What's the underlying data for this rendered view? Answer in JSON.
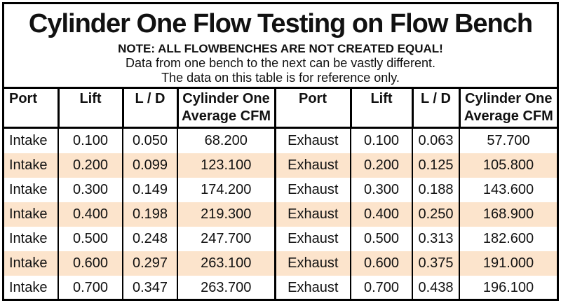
{
  "title": "Cylinder One Flow Testing on Flow Bench",
  "note": {
    "line1": "NOTE: ALL FLOWBENCHES ARE NOT CREATED EQUAL!",
    "line2": "Data from one bench to the next can be vastly different.",
    "line3": "The data on this table is for reference only."
  },
  "colors": {
    "band": "#fce4cc",
    "border": "#000000",
    "text": "#111111",
    "background": "#ffffff"
  },
  "table": {
    "headers": [
      "Port",
      "Lift",
      "L / D",
      "Cylinder One\nAverage CFM",
      "Port",
      "Lift",
      "L / D",
      "Cylinder One\nAverage CFM"
    ],
    "column_names": [
      "intake-port",
      "intake-lift",
      "intake-l-d",
      "intake-avg-cfm",
      "exhaust-port",
      "exhaust-lift",
      "exhaust-l-d",
      "exhaust-avg-cfm"
    ],
    "rows": [
      [
        "Intake",
        "0.100",
        "0.050",
        "68.200",
        "Exhaust",
        "0.100",
        "0.063",
        "57.700"
      ],
      [
        "Intake",
        "0.200",
        "0.099",
        "123.100",
        "Exhaust",
        "0.200",
        "0.125",
        "105.800"
      ],
      [
        "Intake",
        "0.300",
        "0.149",
        "174.200",
        "Exhaust",
        "0.300",
        "0.188",
        "143.600"
      ],
      [
        "Intake",
        "0.400",
        "0.198",
        "219.300",
        "Exhaust",
        "0.400",
        "0.250",
        "168.900"
      ],
      [
        "Intake",
        "0.500",
        "0.248",
        "247.700",
        "Exhaust",
        "0.500",
        "0.313",
        "182.600"
      ],
      [
        "Intake",
        "0.600",
        "0.297",
        "263.100",
        "Exhaust",
        "0.600",
        "0.375",
        "191.000"
      ],
      [
        "Intake",
        "0.700",
        "0.347",
        "263.700",
        "Exhaust",
        "0.700",
        "0.438",
        "196.100"
      ]
    ]
  },
  "chart_data": {
    "type": "table",
    "title": "Cylinder One Flow Testing on Flow Bench",
    "columns": [
      "Port",
      "Lift",
      "L / D",
      "Cylinder One Average CFM",
      "Port",
      "Lift",
      "L / D",
      "Cylinder One Average CFM"
    ],
    "series": [
      {
        "name": "Intake",
        "lift": [
          0.1,
          0.2,
          0.3,
          0.4,
          0.5,
          0.6,
          0.7
        ],
        "l_over_d": [
          0.05,
          0.099,
          0.149,
          0.198,
          0.248,
          0.297,
          0.347
        ],
        "average_cfm": [
          68.2,
          123.1,
          174.2,
          219.3,
          247.7,
          263.1,
          263.7
        ]
      },
      {
        "name": "Exhaust",
        "lift": [
          0.1,
          0.2,
          0.3,
          0.4,
          0.5,
          0.6,
          0.7
        ],
        "l_over_d": [
          0.063,
          0.125,
          0.188,
          0.25,
          0.313,
          0.375,
          0.438
        ],
        "average_cfm": [
          57.7,
          105.8,
          143.6,
          168.9,
          182.6,
          191.0,
          196.1
        ]
      }
    ]
  }
}
